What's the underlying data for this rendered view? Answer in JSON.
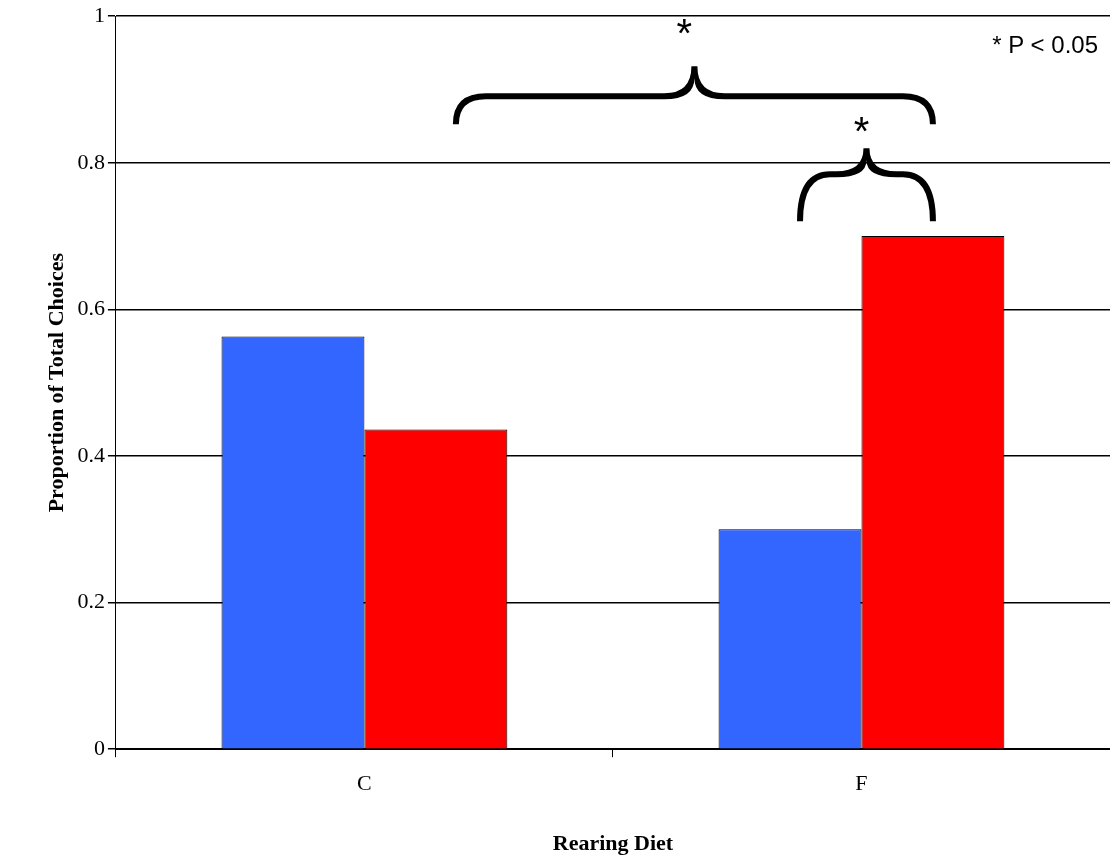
{
  "chart_data": {
    "type": "bar",
    "xlabel": "Rearing Diet",
    "ylabel": "Proportion of Total Choices",
    "categories": [
      "C",
      "F"
    ],
    "series": [
      {
        "color": "#3366ff",
        "values": [
          0.563,
          0.3
        ]
      },
      {
        "color": "#ff0000",
        "values": [
          0.436,
          0.7
        ]
      }
    ],
    "ylim": [
      0,
      1
    ],
    "yticks": [
      0,
      0.2,
      0.4,
      0.6,
      0.8,
      1
    ],
    "grid": "y",
    "legend": false,
    "annotations": [
      "*",
      "*",
      "* P < 0.05"
    ]
  }
}
